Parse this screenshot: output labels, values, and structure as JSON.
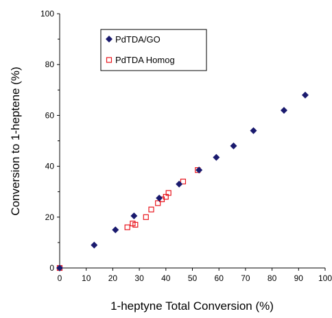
{
  "chart_data": {
    "type": "scatter",
    "xlabel": "1-heptyne Total Conversion (%)",
    "ylabel": "Conversion to 1-heptene (%)",
    "xlim": [
      0,
      100
    ],
    "ylim": [
      0,
      100
    ],
    "xticks": [
      0,
      10,
      20,
      30,
      40,
      50,
      60,
      70,
      80,
      90,
      100
    ],
    "yticks": [
      0,
      20,
      40,
      60,
      80,
      100
    ],
    "grid": false,
    "legend_position": "top-left",
    "series": [
      {
        "name": "PdTDA/GO",
        "marker": "filled-diamond",
        "color": "#1a1a6e",
        "points": [
          [
            0,
            0
          ],
          [
            13,
            9
          ],
          [
            21,
            15
          ],
          [
            28,
            20.5
          ],
          [
            37.5,
            27.5
          ],
          [
            45,
            33
          ],
          [
            52.5,
            38.5
          ],
          [
            59,
            43.5
          ],
          [
            65.5,
            48
          ],
          [
            73,
            54
          ],
          [
            84.5,
            62
          ],
          [
            92.5,
            68
          ]
        ]
      },
      {
        "name": "PdTDA Homog",
        "marker": "open-square",
        "color": "#e8141c",
        "points": [
          [
            0,
            0
          ],
          [
            25.5,
            16
          ],
          [
            27.5,
            17.5
          ],
          [
            28.5,
            17
          ],
          [
            32.5,
            20
          ],
          [
            34.5,
            23
          ],
          [
            37,
            25.5
          ],
          [
            38.5,
            27
          ],
          [
            40,
            28
          ],
          [
            41,
            29.5
          ],
          [
            46.5,
            34
          ],
          [
            52,
            38.5
          ]
        ]
      }
    ]
  }
}
